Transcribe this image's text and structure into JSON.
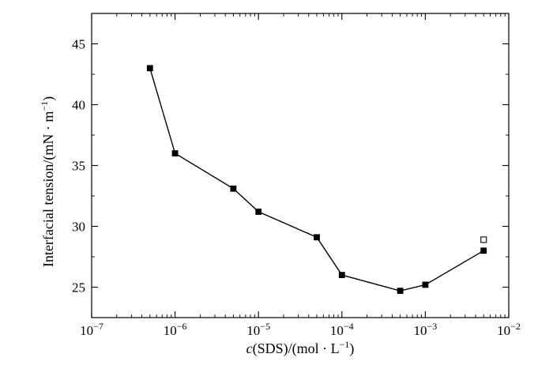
{
  "chart_data": {
    "type": "line",
    "x_scale": "log",
    "xlabel": {
      "italic": "c",
      "rest": "(SDS)/(mol · L",
      "sup": "−1",
      "close": ")"
    },
    "ylabel": {
      "main": "Interfacial tension/(mN · m",
      "sup": "−1",
      "close": ")"
    },
    "xlim": [
      1e-07,
      0.01
    ],
    "ylim": [
      22.5,
      47.5
    ],
    "x_ticks": [
      {
        "value": 1e-07,
        "base": "10",
        "exp": "−7"
      },
      {
        "value": 1e-06,
        "base": "10",
        "exp": "−6"
      },
      {
        "value": 1e-05,
        "base": "10",
        "exp": "−5"
      },
      {
        "value": 0.0001,
        "base": "10",
        "exp": "−4"
      },
      {
        "value": 0.001,
        "base": "10",
        "exp": "−3"
      },
      {
        "value": 0.01,
        "base": "10",
        "exp": "−2"
      }
    ],
    "y_ticks": [
      25,
      30,
      35,
      40,
      45
    ],
    "grid": false,
    "series": [
      {
        "marker": "filled-square",
        "connected": true,
        "x": [
          5e-07,
          1e-06,
          5e-06,
          1e-05,
          5e-05,
          0.0001,
          0.0005,
          0.001,
          0.005
        ],
        "y": [
          43.0,
          36.0,
          33.1,
          31.2,
          29.1,
          26.0,
          24.7,
          25.2,
          28.0
        ]
      },
      {
        "marker": "open-square",
        "connected": false,
        "x": [
          0.005
        ],
        "y": [
          28.9
        ]
      }
    ]
  }
}
